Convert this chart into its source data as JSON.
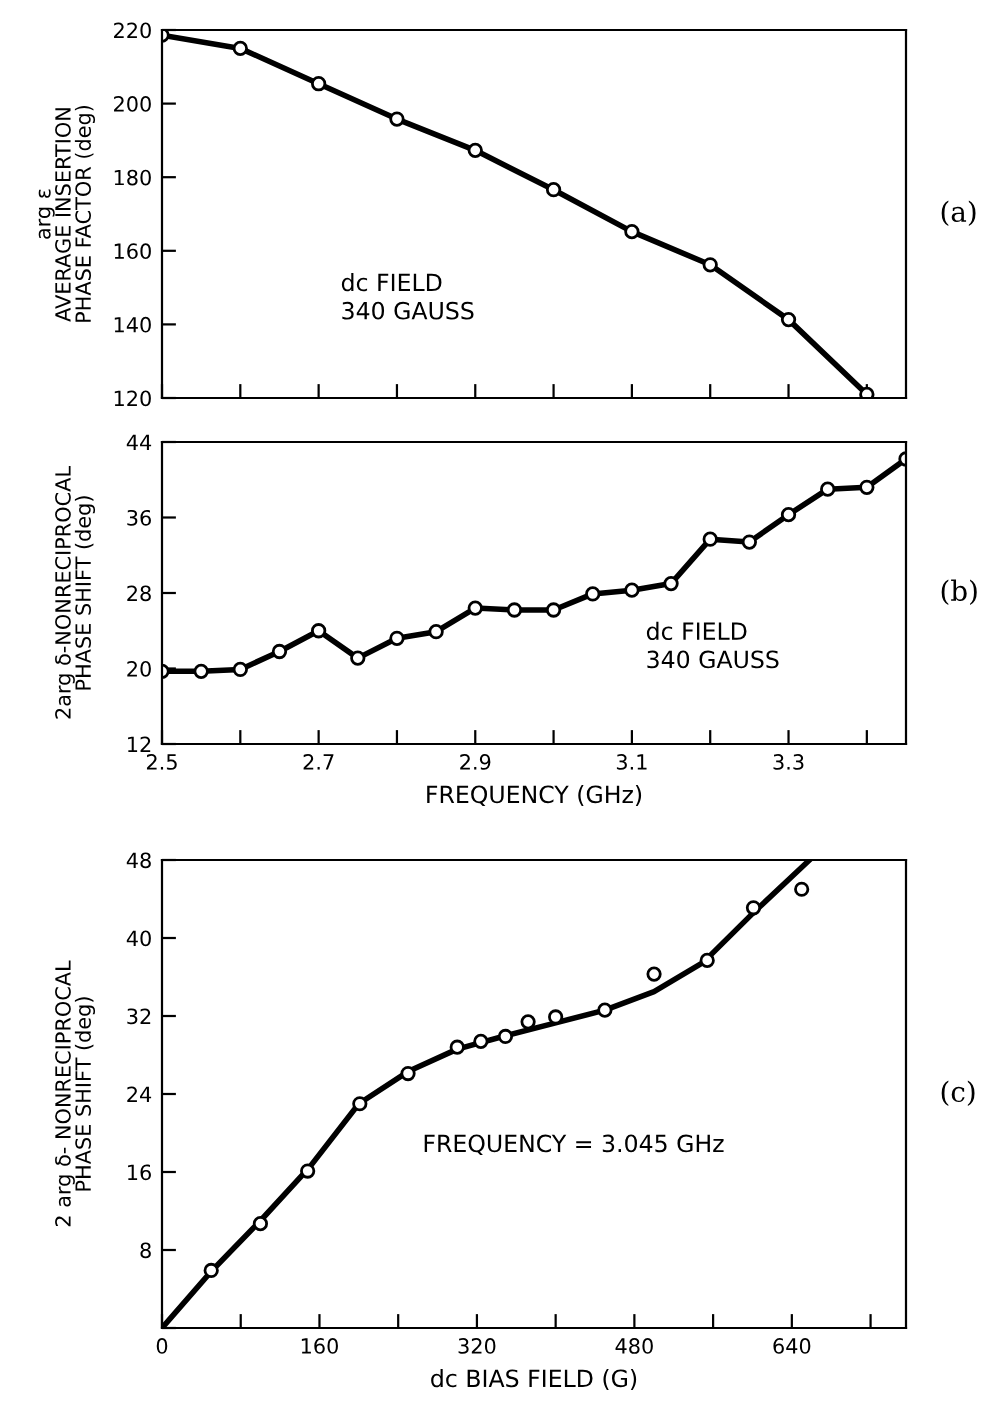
{
  "chart_data": [
    {
      "type": "line",
      "ylabel": "arg ε\nAVERAGE INSERTION\nPHASE FACTOR (deg)",
      "annotations": [
        "dc FIELD\n340 GAUSS",
        "(a)"
      ],
      "x": [
        2.5,
        2.6,
        2.7,
        2.8,
        2.9,
        3.0,
        3.1,
        3.2,
        3.3,
        3.4
      ],
      "series": [
        {
          "color": "#000000",
          "values": [
            218.6,
            215,
            205.4,
            195.8,
            187.3,
            176.6,
            165.2,
            156.2,
            141.3,
            121
          ]
        }
      ],
      "xlim": [
        2.5,
        3.45
      ],
      "xticks": [
        2.5,
        2.6,
        2.7,
        2.8,
        2.9,
        3.0,
        3.1,
        3.2,
        3.3,
        3.4
      ],
      "ylim": [
        120,
        220
      ],
      "yticks": [
        120,
        140,
        160,
        180,
        200,
        220
      ],
      "tick_labels": "y",
      "marker": "circle",
      "line_style": "solid",
      "grid": false,
      "legend": false
    },
    {
      "type": "line",
      "xlabel": "FREQUENCY (GHz)",
      "ylabel": "2arg δ-NONRECIPROCAL\nPHASE SHIFT (deg)",
      "annotations": [
        "dc FIELD\n340 GAUSS",
        "(b)"
      ],
      "x": [
        2.5,
        2.55,
        2.6,
        2.65,
        2.7,
        2.75,
        2.8,
        2.85,
        2.9,
        2.95,
        3.0,
        3.05,
        3.1,
        3.15,
        3.2,
        3.25,
        3.3,
        3.35,
        3.4,
        3.45
      ],
      "series": [
        {
          "color": "#000000",
          "values": [
            19.7,
            19.7,
            19.9,
            21.8,
            24.0,
            21.1,
            23.2,
            23.9,
            26.4,
            26.2,
            26.2,
            27.9,
            28.3,
            29.0,
            33.7,
            33.4,
            36.3,
            39.0,
            39.2,
            42.2
          ]
        }
      ],
      "xlim": [
        2.5,
        3.45
      ],
      "xticks": [
        2.5,
        {
          "value": 2.6,
          "label": null
        },
        2.7,
        {
          "value": 2.8,
          "label": null
        },
        2.9,
        {
          "value": 3.0,
          "label": null
        },
        3.1,
        {
          "value": 3.2,
          "label": null
        },
        3.3,
        {
          "value": 3.4,
          "label": null
        }
      ],
      "ylim": [
        12,
        44
      ],
      "yticks": [
        12,
        20,
        28,
        36,
        44
      ],
      "marker": "circle",
      "line_style": "solid",
      "grid": false,
      "legend": false
    },
    {
      "type": "scatter",
      "xlabel": "dc BIAS FIELD (G)",
      "ylabel": "2 arg δ- NONRECIPROCAL\nPHASE SHIFT (deg)",
      "annotations": [
        "FREQUENCY = 3.045 GHz",
        "(c)"
      ],
      "x": [
        50,
        100,
        148,
        201,
        250,
        300,
        324,
        349,
        372,
        400,
        450,
        500,
        554,
        601,
        650
      ],
      "series": [
        {
          "color": "#000000",
          "values": [
            5.9,
            10.7,
            16.1,
            23.0,
            26.1,
            28.8,
            29.4,
            29.9,
            31.4,
            31.9,
            32.6,
            36.3,
            37.7,
            43.1,
            45.0
          ]
        },
        {
          "type": "line",
          "marker": "none",
          "color": "#000000",
          "x": [
            0,
            50,
            100,
            150,
            200,
            250,
            300,
            350,
            400,
            450,
            500,
            550,
            600,
            658
          ],
          "values": [
            0,
            5.8,
            11,
            16.5,
            23,
            26.3,
            28.6,
            30,
            31.3,
            32.6,
            34.5,
            37.5,
            42.5,
            48
          ]
        }
      ],
      "xlim": [
        0,
        756
      ],
      "xticks": [
        0,
        {
          "value": 80,
          "label": null
        },
        160,
        {
          "value": 240,
          "label": null
        },
        320,
        {
          "value": 400,
          "label": null
        },
        480,
        {
          "value": 560,
          "label": null
        },
        640,
        {
          "value": 720,
          "label": null
        }
      ],
      "ylim": [
        0,
        48
      ],
      "yticks": [
        {
          "value": 0,
          "label": null
        },
        8,
        16,
        24,
        32,
        40,
        48
      ],
      "marker": "circle",
      "grid": false,
      "legend": false
    }
  ]
}
